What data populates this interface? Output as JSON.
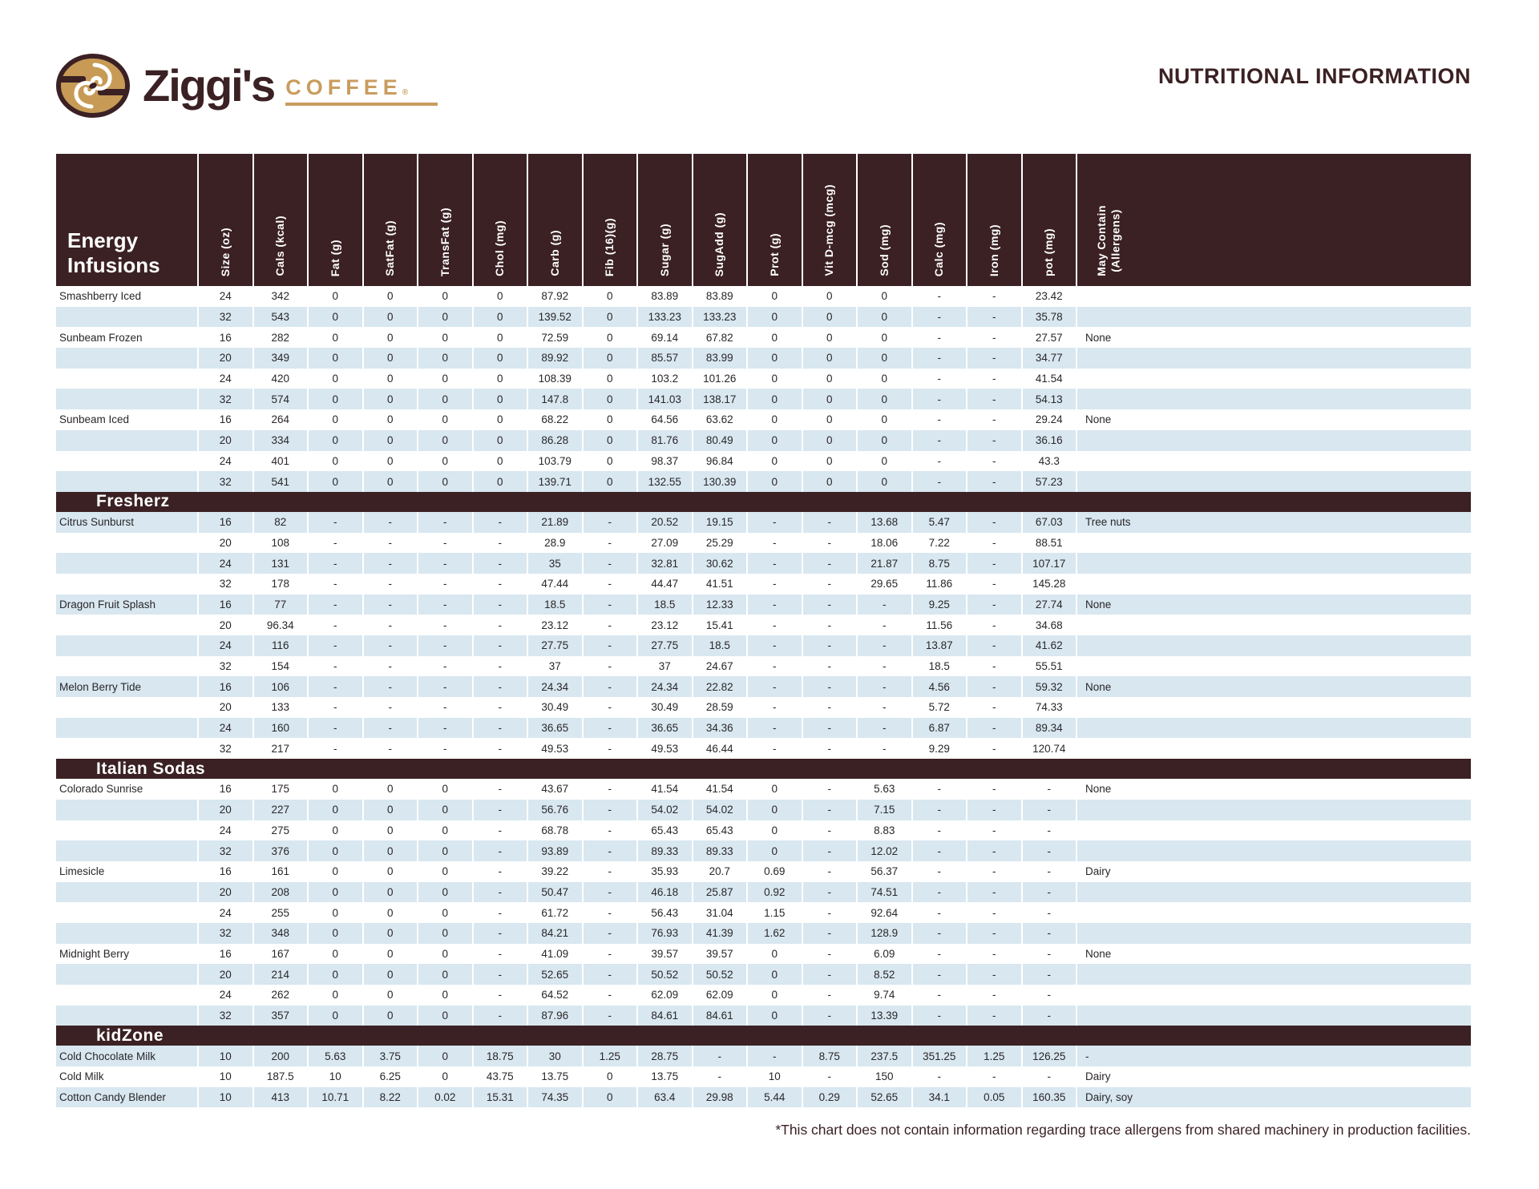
{
  "brand": {
    "wordmark": "Ziggi's",
    "coffee": "COFFEE",
    "registered": "®"
  },
  "title": "NUTRITIONAL INFORMATION",
  "footnote": "*This chart does not contain information regarding trace allergens from shared machinery in production facilities.",
  "colors": {
    "brown": "#3b2124",
    "gold": "#c99d5e",
    "stripe_blue": "#d8e7f0"
  },
  "table": {
    "columns": [
      "Size (oz)",
      "Cals (kcal)",
      "Fat (g)",
      "SatFat (g)",
      "TransFat (g)",
      "Chol (mg)",
      "Carb (g)",
      "Fib (16)(g)",
      "Sugar (g)",
      "SugAdd (g)",
      "Prot (g)",
      "Vit D-mcg (mcg)",
      "Sod (mg)",
      "Calc (mg)",
      "Iron (mg)",
      "pot (mg)",
      "May Contain\n(Allergens)"
    ],
    "sections": [
      {
        "title": "Energy Infusions",
        "rows": [
          {
            "name": "Smashberry Iced",
            "values": [
              "24",
              "342",
              "0",
              "0",
              "0",
              "0",
              "87.92",
              "0",
              "83.89",
              "83.89",
              "0",
              "0",
              "0",
              "-",
              "-",
              "23.42",
              ""
            ]
          },
          {
            "name": "",
            "values": [
              "32",
              "543",
              "0",
              "0",
              "0",
              "0",
              "139.52",
              "0",
              "133.23",
              "133.23",
              "0",
              "0",
              "0",
              "-",
              "-",
              "35.78",
              ""
            ]
          },
          {
            "name": "Sunbeam Frozen",
            "values": [
              "16",
              "282",
              "0",
              "0",
              "0",
              "0",
              "72.59",
              "0",
              "69.14",
              "67.82",
              "0",
              "0",
              "0",
              "-",
              "-",
              "27.57",
              "None"
            ]
          },
          {
            "name": "",
            "values": [
              "20",
              "349",
              "0",
              "0",
              "0",
              "0",
              "89.92",
              "0",
              "85.57",
              "83.99",
              "0",
              "0",
              "0",
              "-",
              "-",
              "34.77",
              ""
            ]
          },
          {
            "name": "",
            "values": [
              "24",
              "420",
              "0",
              "0",
              "0",
              "0",
              "108.39",
              "0",
              "103.2",
              "101.26",
              "0",
              "0",
              "0",
              "-",
              "-",
              "41.54",
              ""
            ]
          },
          {
            "name": "",
            "values": [
              "32",
              "574",
              "0",
              "0",
              "0",
              "0",
              "147.8",
              "0",
              "141.03",
              "138.17",
              "0",
              "0",
              "0",
              "-",
              "-",
              "54.13",
              ""
            ]
          },
          {
            "name": "Sunbeam Iced",
            "values": [
              "16",
              "264",
              "0",
              "0",
              "0",
              "0",
              "68.22",
              "0",
              "64.56",
              "63.62",
              "0",
              "0",
              "0",
              "-",
              "-",
              "29.24",
              "None"
            ]
          },
          {
            "name": "",
            "values": [
              "20",
              "334",
              "0",
              "0",
              "0",
              "0",
              "86.28",
              "0",
              "81.76",
              "80.49",
              "0",
              "0",
              "0",
              "-",
              "-",
              "36.16",
              ""
            ]
          },
          {
            "name": "",
            "values": [
              "24",
              "401",
              "0",
              "0",
              "0",
              "0",
              "103.79",
              "0",
              "98.37",
              "96.84",
              "0",
              "0",
              "0",
              "-",
              "-",
              "43.3",
              ""
            ]
          },
          {
            "name": "",
            "values": [
              "32",
              "541",
              "0",
              "0",
              "0",
              "0",
              "139.71",
              "0",
              "132.55",
              "130.39",
              "0",
              "0",
              "0",
              "-",
              "-",
              "57.23",
              ""
            ]
          }
        ]
      },
      {
        "title": "Fresherz",
        "rows": [
          {
            "name": "Citrus Sunburst",
            "values": [
              "16",
              "82",
              "-",
              "-",
              "-",
              "-",
              "21.89",
              "-",
              "20.52",
              "19.15",
              "-",
              "-",
              "13.68",
              "5.47",
              "-",
              "67.03",
              "Tree nuts"
            ]
          },
          {
            "name": "",
            "values": [
              "20",
              "108",
              "-",
              "-",
              "-",
              "-",
              "28.9",
              "-",
              "27.09",
              "25.29",
              "-",
              "-",
              "18.06",
              "7.22",
              "-",
              "88.51",
              ""
            ]
          },
          {
            "name": "",
            "values": [
              "24",
              "131",
              "-",
              "-",
              "-",
              "-",
              "35",
              "-",
              "32.81",
              "30.62",
              "-",
              "-",
              "21.87",
              "8.75",
              "-",
              "107.17",
              ""
            ]
          },
          {
            "name": "",
            "values": [
              "32",
              "178",
              "-",
              "-",
              "-",
              "-",
              "47.44",
              "-",
              "44.47",
              "41.51",
              "-",
              "-",
              "29.65",
              "11.86",
              "-",
              "145.28",
              ""
            ]
          },
          {
            "name": "Dragon Fruit Splash",
            "values": [
              "16",
              "77",
              "-",
              "-",
              "-",
              "-",
              "18.5",
              "-",
              "18.5",
              "12.33",
              "-",
              "-",
              "-",
              "9.25",
              "-",
              "27.74",
              "None"
            ]
          },
          {
            "name": "",
            "values": [
              "20",
              "96.34",
              "-",
              "-",
              "-",
              "-",
              "23.12",
              "-",
              "23.12",
              "15.41",
              "-",
              "-",
              "-",
              "11.56",
              "-",
              "34.68",
              ""
            ]
          },
          {
            "name": "",
            "values": [
              "24",
              "116",
              "-",
              "-",
              "-",
              "-",
              "27.75",
              "-",
              "27.75",
              "18.5",
              "-",
              "-",
              "-",
              "13.87",
              "-",
              "41.62",
              ""
            ]
          },
          {
            "name": "",
            "values": [
              "32",
              "154",
              "-",
              "-",
              "-",
              "-",
              "37",
              "-",
              "37",
              "24.67",
              "-",
              "-",
              "-",
              "18.5",
              "-",
              "55.51",
              ""
            ]
          },
          {
            "name": "Melon Berry Tide",
            "values": [
              "16",
              "106",
              "-",
              "-",
              "-",
              "-",
              "24.34",
              "-",
              "24.34",
              "22.82",
              "-",
              "-",
              "-",
              "4.56",
              "-",
              "59.32",
              "None"
            ]
          },
          {
            "name": "",
            "values": [
              "20",
              "133",
              "-",
              "-",
              "-",
              "-",
              "30.49",
              "-",
              "30.49",
              "28.59",
              "-",
              "-",
              "-",
              "5.72",
              "-",
              "74.33",
              ""
            ]
          },
          {
            "name": "",
            "values": [
              "24",
              "160",
              "-",
              "-",
              "-",
              "-",
              "36.65",
              "-",
              "36.65",
              "34.36",
              "-",
              "-",
              "-",
              "6.87",
              "-",
              "89.34",
              ""
            ]
          },
          {
            "name": "",
            "values": [
              "32",
              "217",
              "-",
              "-",
              "-",
              "-",
              "49.53",
              "-",
              "49.53",
              "46.44",
              "-",
              "-",
              "-",
              "9.29",
              "-",
              "120.74",
              ""
            ]
          }
        ]
      },
      {
        "title": "Italian Sodas",
        "rows": [
          {
            "name": "Colorado Sunrise",
            "values": [
              "16",
              "175",
              "0",
              "0",
              "0",
              "-",
              "43.67",
              "-",
              "41.54",
              "41.54",
              "0",
              "-",
              "5.63",
              "-",
              "-",
              "-",
              "None"
            ]
          },
          {
            "name": "",
            "values": [
              "20",
              "227",
              "0",
              "0",
              "0",
              "-",
              "56.76",
              "-",
              "54.02",
              "54.02",
              "0",
              "-",
              "7.15",
              "-",
              "-",
              "-",
              ""
            ]
          },
          {
            "name": "",
            "values": [
              "24",
              "275",
              "0",
              "0",
              "0",
              "-",
              "68.78",
              "-",
              "65.43",
              "65.43",
              "0",
              "-",
              "8.83",
              "-",
              "-",
              "-",
              ""
            ]
          },
          {
            "name": "",
            "values": [
              "32",
              "376",
              "0",
              "0",
              "0",
              "-",
              "93.89",
              "-",
              "89.33",
              "89.33",
              "0",
              "-",
              "12.02",
              "-",
              "-",
              "-",
              ""
            ]
          },
          {
            "name": "Limesicle",
            "values": [
              "16",
              "161",
              "0",
              "0",
              "0",
              "-",
              "39.22",
              "-",
              "35.93",
              "20.7",
              "0.69",
              "-",
              "56.37",
              "-",
              "-",
              "-",
              "Dairy"
            ]
          },
          {
            "name": "",
            "values": [
              "20",
              "208",
              "0",
              "0",
              "0",
              "-",
              "50.47",
              "-",
              "46.18",
              "25.87",
              "0.92",
              "-",
              "74.51",
              "-",
              "-",
              "-",
              ""
            ]
          },
          {
            "name": "",
            "values": [
              "24",
              "255",
              "0",
              "0",
              "0",
              "-",
              "61.72",
              "-",
              "56.43",
              "31.04",
              "1.15",
              "-",
              "92.64",
              "-",
              "-",
              "-",
              ""
            ]
          },
          {
            "name": "",
            "values": [
              "32",
              "348",
              "0",
              "0",
              "0",
              "-",
              "84.21",
              "-",
              "76.93",
              "41.39",
              "1.62",
              "-",
              "128.9",
              "-",
              "-",
              "-",
              ""
            ]
          },
          {
            "name": "Midnight Berry",
            "values": [
              "16",
              "167",
              "0",
              "0",
              "0",
              "-",
              "41.09",
              "-",
              "39.57",
              "39.57",
              "0",
              "-",
              "6.09",
              "-",
              "-",
              "-",
              "None"
            ]
          },
          {
            "name": "",
            "values": [
              "20",
              "214",
              "0",
              "0",
              "0",
              "-",
              "52.65",
              "-",
              "50.52",
              "50.52",
              "0",
              "-",
              "8.52",
              "-",
              "-",
              "-",
              ""
            ]
          },
          {
            "name": "",
            "values": [
              "24",
              "262",
              "0",
              "0",
              "0",
              "-",
              "64.52",
              "-",
              "62.09",
              "62.09",
              "0",
              "-",
              "9.74",
              "-",
              "-",
              "-",
              ""
            ]
          },
          {
            "name": "",
            "values": [
              "32",
              "357",
              "0",
              "0",
              "0",
              "-",
              "87.96",
              "-",
              "84.61",
              "84.61",
              "0",
              "-",
              "13.39",
              "-",
              "-",
              "-",
              ""
            ]
          }
        ]
      },
      {
        "title": "kidZone",
        "rows": [
          {
            "name": "Cold Chocolate Milk",
            "values": [
              "10",
              "200",
              "5.63",
              "3.75",
              "0",
              "18.75",
              "30",
              "1.25",
              "28.75",
              "-",
              "-",
              "8.75",
              "237.5",
              "351.25",
              "1.25",
              "126.25",
              "-"
            ]
          },
          {
            "name": "Cold Milk",
            "values": [
              "10",
              "187.5",
              "10",
              "6.25",
              "0",
              "43.75",
              "13.75",
              "0",
              "13.75",
              "-",
              "10",
              "-",
              "150",
              "-",
              "-",
              "-",
              "Dairy"
            ]
          },
          {
            "name": "Cotton Candy Blender",
            "values": [
              "10",
              "413",
              "10.71",
              "8.22",
              "0.02",
              "15.31",
              "74.35",
              "0",
              "63.4",
              "29.98",
              "5.44",
              "0.29",
              "52.65",
              "34.1",
              "0.05",
              "160.35",
              "Dairy, soy"
            ]
          }
        ]
      }
    ]
  }
}
